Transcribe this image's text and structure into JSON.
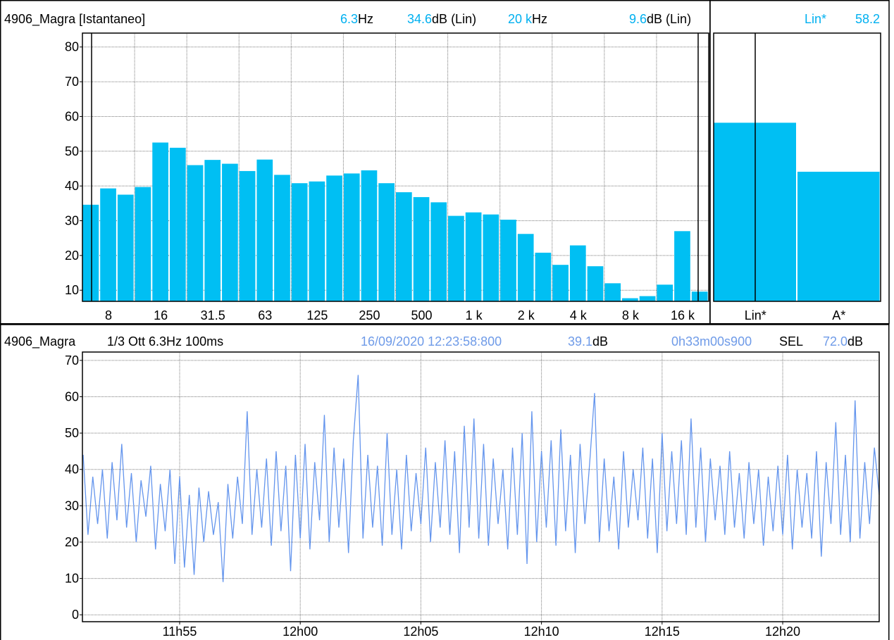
{
  "chart_data": [
    {
      "type": "bar",
      "title": "4906_Magra [Istantaneo]",
      "highlight_color": "#00b0f0",
      "readouts": [
        [
          {
            "text": "6.3",
            "highlight": true
          },
          {
            "text": "Hz",
            "highlight": false
          }
        ],
        [
          {
            "text": "34.6",
            "highlight": true
          },
          {
            "text": "dB (Lin)",
            "highlight": false
          }
        ],
        [
          {
            "text": "20 k",
            "highlight": true
          },
          {
            "text": "Hz",
            "highlight": false
          }
        ],
        [
          {
            "text": "9.6",
            "highlight": true
          },
          {
            "text": "dB (Lin)",
            "highlight": false
          }
        ]
      ],
      "categories": [
        null,
        "8",
        null,
        null,
        "16",
        null,
        null,
        "31.5",
        null,
        null,
        "63",
        null,
        null,
        "125",
        null,
        null,
        "250",
        null,
        null,
        "500",
        null,
        null,
        "1 k",
        null,
        null,
        "2 k",
        null,
        null,
        "4 k",
        null,
        null,
        "8 k",
        null,
        null,
        "16 k",
        null
      ],
      "values": [
        34.6,
        39.3,
        37.5,
        39.7,
        52.5,
        51,
        46,
        47.5,
        46.4,
        44.3,
        47.6,
        43.2,
        40.8,
        41.3,
        43,
        43.6,
        44.5,
        40.8,
        38.2,
        36.8,
        35.3,
        31.4,
        32.4,
        31.8,
        30.3,
        26.2,
        20.8,
        17.3,
        22.9,
        16.9,
        12,
        7.7,
        8.3,
        11.6,
        27,
        9.6
      ],
      "color": "#00bff3",
      "ylim": [
        6.8,
        84
      ],
      "yticks": [
        10,
        20,
        30,
        40,
        50,
        60,
        70,
        80
      ],
      "grid": true
    },
    {
      "type": "bar",
      "highlight_color": "#00b0f0",
      "readouts": [
        [
          {
            "text": "Lin*",
            "highlight": true
          }
        ],
        [
          {
            "text": "58.2",
            "highlight": true
          }
        ]
      ],
      "categories": [
        "Lin*",
        "A*"
      ],
      "values": [
        58.2,
        44.1
      ],
      "color": "#00bff3",
      "ylim": [
        6.8,
        84
      ],
      "grid": false
    },
    {
      "type": "line",
      "title": "4906_Magra",
      "subtitle": "1/3 Ott 6.3Hz 100ms",
      "highlight_color": "#6f9be8",
      "readouts": [
        [
          {
            "text": "16/09/2020 12:23:58:800",
            "highlight": true
          }
        ],
        [
          {
            "text": "39.1",
            "highlight": true
          },
          {
            "text": "dB",
            "highlight": false
          }
        ],
        [
          {
            "text": "0h33m00s900",
            "highlight": true
          }
        ],
        [
          {
            "text": "SEL",
            "highlight": false
          }
        ],
        [
          {
            "text": "72.0",
            "highlight": true
          },
          {
            "text": "dB",
            "highlight": false
          }
        ]
      ],
      "x": [
        711,
        711.2,
        711.4,
        711.6,
        711.8,
        712,
        712.2,
        712.4,
        712.6,
        712.8,
        713,
        713.2,
        713.4,
        713.6,
        713.8,
        714,
        714.2,
        714.4,
        714.6,
        714.8,
        715,
        715.2,
        715.4,
        715.6,
        715.8,
        716,
        716.2,
        716.4,
        716.6,
        716.8,
        717,
        717.2,
        717.4,
        717.6,
        717.8,
        718,
        718.2,
        718.4,
        718.6,
        718.8,
        719,
        719.2,
        719.4,
        719.6,
        719.8,
        720,
        720.2,
        720.4,
        720.6,
        720.8,
        721,
        721.2,
        721.4,
        721.6,
        721.8,
        722,
        722.2,
        722.4,
        722.6,
        722.8,
        723,
        723.2,
        723.4,
        723.6,
        723.8,
        724,
        724.2,
        724.4,
        724.6,
        724.8,
        725,
        725.2,
        725.4,
        725.6,
        725.8,
        726,
        726.2,
        726.4,
        726.6,
        726.8,
        727,
        727.2,
        727.4,
        727.6,
        727.8,
        728,
        728.2,
        728.4,
        728.6,
        728.8,
        729,
        729.2,
        729.4,
        729.6,
        729.8,
        730,
        730.2,
        730.4,
        730.6,
        730.8,
        731,
        731.2,
        731.4,
        731.6,
        731.8,
        732,
        732.2,
        732.4,
        732.6,
        732.8,
        733,
        733.2,
        733.4,
        733.6,
        733.8,
        734,
        734.2,
        734.4,
        734.6,
        734.8,
        735,
        735.2,
        735.4,
        735.6,
        735.8,
        736,
        736.2,
        736.4,
        736.6,
        736.8,
        737,
        737.2,
        737.4,
        737.6,
        737.8,
        738,
        738.2,
        738.4,
        738.6,
        738.8,
        739,
        739.2,
        739.4,
        739.6,
        739.8,
        740,
        740.2,
        740.4,
        740.6,
        740.8,
        741,
        741.2,
        741.4,
        741.6,
        741.8,
        742,
        742.2,
        742.4,
        742.6,
        742.8,
        743,
        743.2,
        743.4,
        743.6,
        743.8,
        744
      ],
      "values": [
        44,
        22,
        38,
        25,
        40,
        21,
        42,
        26,
        47,
        24,
        39,
        20,
        37,
        27,
        41,
        18,
        36,
        23,
        40,
        14,
        38,
        13,
        33,
        11,
        35,
        20,
        34,
        22,
        31,
        9,
        36,
        21,
        38,
        25,
        56,
        22,
        40,
        24,
        43,
        19,
        45,
        23,
        41,
        12,
        44,
        21,
        47,
        18,
        42,
        26,
        55,
        20,
        46,
        24,
        43,
        17,
        48,
        66,
        21,
        44,
        24,
        41,
        19,
        50,
        22,
        40,
        18,
        44,
        23,
        39,
        25,
        46,
        20,
        42,
        24,
        48,
        22,
        45,
        17,
        52,
        24,
        54,
        21,
        47,
        19,
        43,
        25,
        40,
        18,
        46,
        22,
        50,
        14,
        56,
        20,
        45,
        24,
        48,
        19,
        51,
        23,
        44,
        17,
        47,
        25,
        42,
        61,
        20,
        43,
        23,
        38,
        18,
        45,
        24,
        40,
        26,
        46,
        21,
        43,
        17,
        50,
        23,
        45,
        25,
        48,
        22,
        54,
        24,
        46,
        20,
        43,
        26,
        41,
        22,
        45,
        24,
        39,
        21,
        42,
        25,
        40,
        19,
        38,
        23,
        41,
        22,
        44,
        18,
        40,
        24,
        39,
        21,
        45,
        16,
        42,
        25,
        53,
        22,
        44,
        20,
        59,
        21,
        42,
        25,
        46,
        33
      ],
      "color": "#6495ed",
      "xlim": [
        710.97,
        744
      ],
      "ylim": [
        -1.9,
        72.3
      ],
      "xticks": [
        {
          "value": 715,
          "label": "11h55"
        },
        {
          "value": 720,
          "label": "12h00"
        },
        {
          "value": 725,
          "label": "12h05"
        },
        {
          "value": 730,
          "label": "12h10"
        },
        {
          "value": 735,
          "label": "12h15"
        },
        {
          "value": 740,
          "label": "12h20"
        }
      ],
      "yticks": [
        0,
        10,
        20,
        30,
        40,
        50,
        60,
        70
      ],
      "grid": true
    }
  ]
}
